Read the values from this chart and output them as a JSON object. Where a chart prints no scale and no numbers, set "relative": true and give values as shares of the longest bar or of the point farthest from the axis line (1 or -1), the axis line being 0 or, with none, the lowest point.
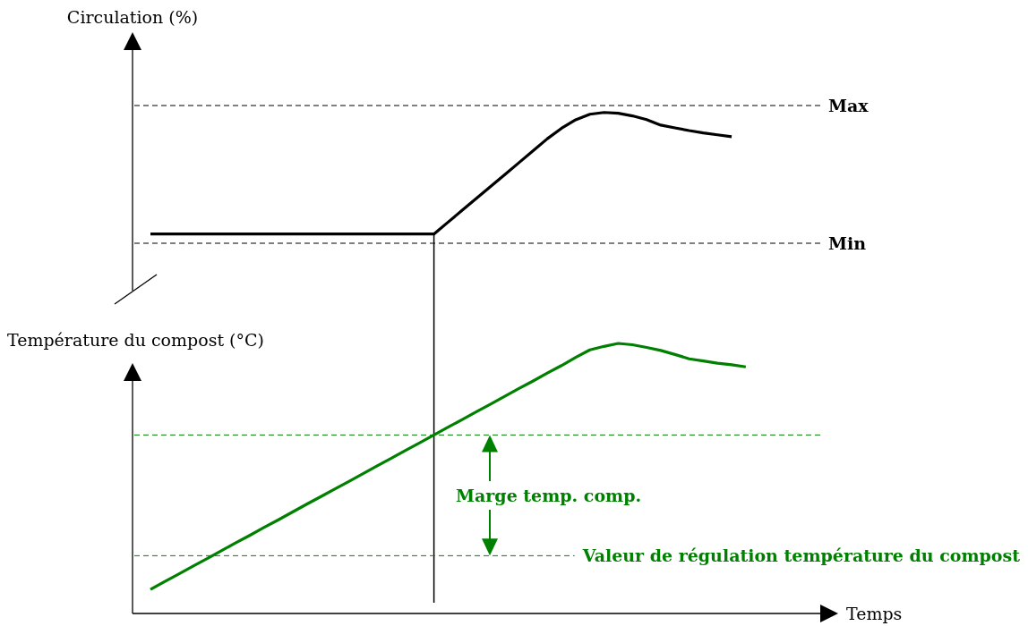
{
  "chart_data": [
    {
      "type": "line",
      "ylabel": "Circulation (%)",
      "relative": true,
      "categories": [
        null,
        null,
        null,
        null,
        null,
        null,
        null,
        null,
        null,
        null,
        null,
        null,
        null,
        null,
        null,
        null,
        null,
        null,
        null,
        null,
        null,
        null,
        null,
        null,
        null,
        null,
        null,
        null,
        null,
        null,
        null,
        null,
        null,
        null,
        null,
        null,
        null,
        null,
        null,
        null,
        null,
        null,
        null,
        null,
        null,
        null,
        null,
        null
      ],
      "series": [
        {
          "color": "#000000",
          "values": [
            0,
            0,
            0,
            0,
            0,
            0,
            0,
            0,
            0,
            0,
            0,
            0,
            0,
            0,
            0,
            0,
            0,
            0,
            0,
            0,
            0,
            0.098,
            0.196,
            0.293,
            0.391,
            0.489,
            0.587,
            0.685,
            0.784,
            0.87,
            0.94,
            0.985,
            1,
            0.994,
            0.972,
            0.941,
            0.896,
            0.873,
            0.851,
            0.832,
            0.816,
            0.801,
            null,
            null,
            null,
            null,
            null,
            null
          ]
        }
      ],
      "ref_lines": [
        {
          "axis": "y",
          "value": 1.057,
          "label": "Max",
          "color": "#000000",
          "line_style": "dashed"
        },
        {
          "axis": "y",
          "value": -0.076,
          "label": "Min",
          "color": "#000000",
          "line_style": "dashed"
        }
      ]
    },
    {
      "type": "line",
      "ylabel": "Température du compost (°C)",
      "xlabel": "Temps",
      "relative": true,
      "categories": [
        null,
        null,
        null,
        null,
        null,
        null,
        null,
        null,
        null,
        null,
        null,
        null,
        null,
        null,
        null,
        null,
        null,
        null,
        null,
        null,
        null,
        null,
        null,
        null,
        null,
        null,
        null,
        null,
        null,
        null,
        null,
        null,
        null,
        null,
        null,
        null,
        null,
        null,
        null,
        null,
        null,
        null,
        null,
        null,
        null,
        null,
        null,
        null
      ],
      "series": [
        {
          "color": "#008000",
          "values": [
            0.089,
            0.118,
            0.146,
            0.175,
            0.203,
            0.232,
            0.261,
            0.289,
            0.318,
            0.346,
            0.375,
            0.404,
            0.432,
            0.461,
            0.489,
            0.518,
            0.547,
            0.575,
            0.604,
            0.632,
            0.661,
            0.69,
            0.718,
            0.747,
            0.775,
            0.804,
            0.833,
            0.861,
            0.89,
            0.918,
            0.948,
            0.976,
            0.989,
            1,
            0.995,
            0.985,
            0.974,
            0.959,
            0.943,
            0.935,
            0.927,
            0.921,
            0.913,
            null,
            null,
            null,
            null,
            null
          ]
        }
      ],
      "ref_lines": [
        {
          "axis": "y",
          "value": 0.661,
          "color": "#008000",
          "line_style": "dashed"
        },
        {
          "axis": "y",
          "value": 0.214,
          "label": "Valeur de régulation température du compost",
          "color": "#008000",
          "line_style": "dashed"
        }
      ],
      "annotations": [
        "Marge temp. comp."
      ]
    }
  ]
}
